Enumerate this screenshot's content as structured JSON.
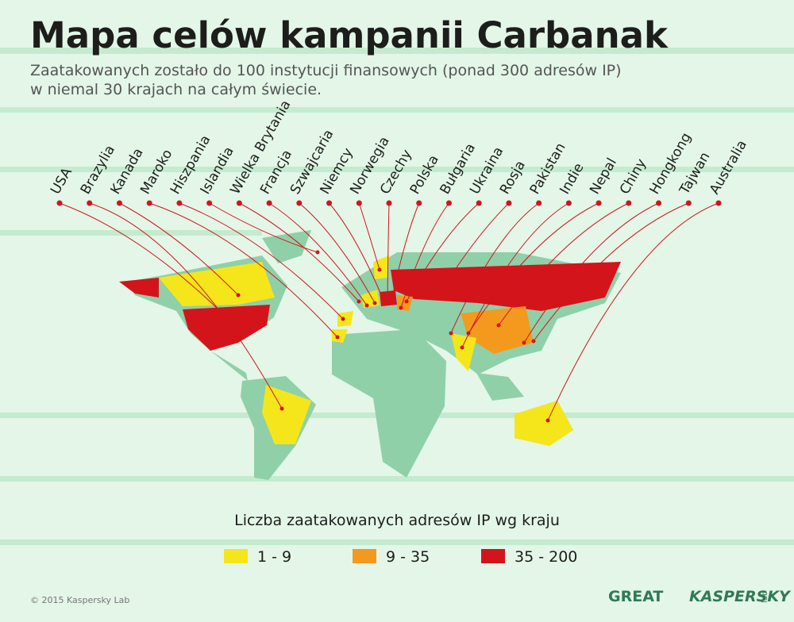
{
  "header": {
    "title": "Mapa celów kampanii Carbanak",
    "subtitle": [
      "Zaatakowanych zostało do 100 instytucji finansowych (ponad 300 adresów IP)",
      "w niemal 30 krajach na całym świecie."
    ]
  },
  "countries": [
    "USA",
    "Brazylia",
    "Kanada",
    "Maroko",
    "Hiszpania",
    "Islandia",
    "Wielka Brytania",
    "Francja",
    "Szwajcaria",
    "Niemcy",
    "Norwegia",
    "Czechy",
    "Polska",
    "Bułgaria",
    "Ukraina",
    "Rosja",
    "Pakistan",
    "Indie",
    "Nepal",
    "Chiny",
    "Hongkong",
    "Tajwan",
    "Australia"
  ],
  "legend": {
    "title": "Liczba zaatakowanych adresów IP wg kraju",
    "items": [
      {
        "label": "1 - 9",
        "color": "#f5e61b"
      },
      {
        "label": "9 - 35",
        "color": "#f39a1e"
      },
      {
        "label": "35 - 200",
        "color": "#d3141b"
      }
    ]
  },
  "footer": {
    "copyright": "© 2015 Kaspersky Lab",
    "logo_great": "GREAT",
    "logo_kaspersky": "KASPERSKY",
    "logo_lab": "lab"
  }
}
